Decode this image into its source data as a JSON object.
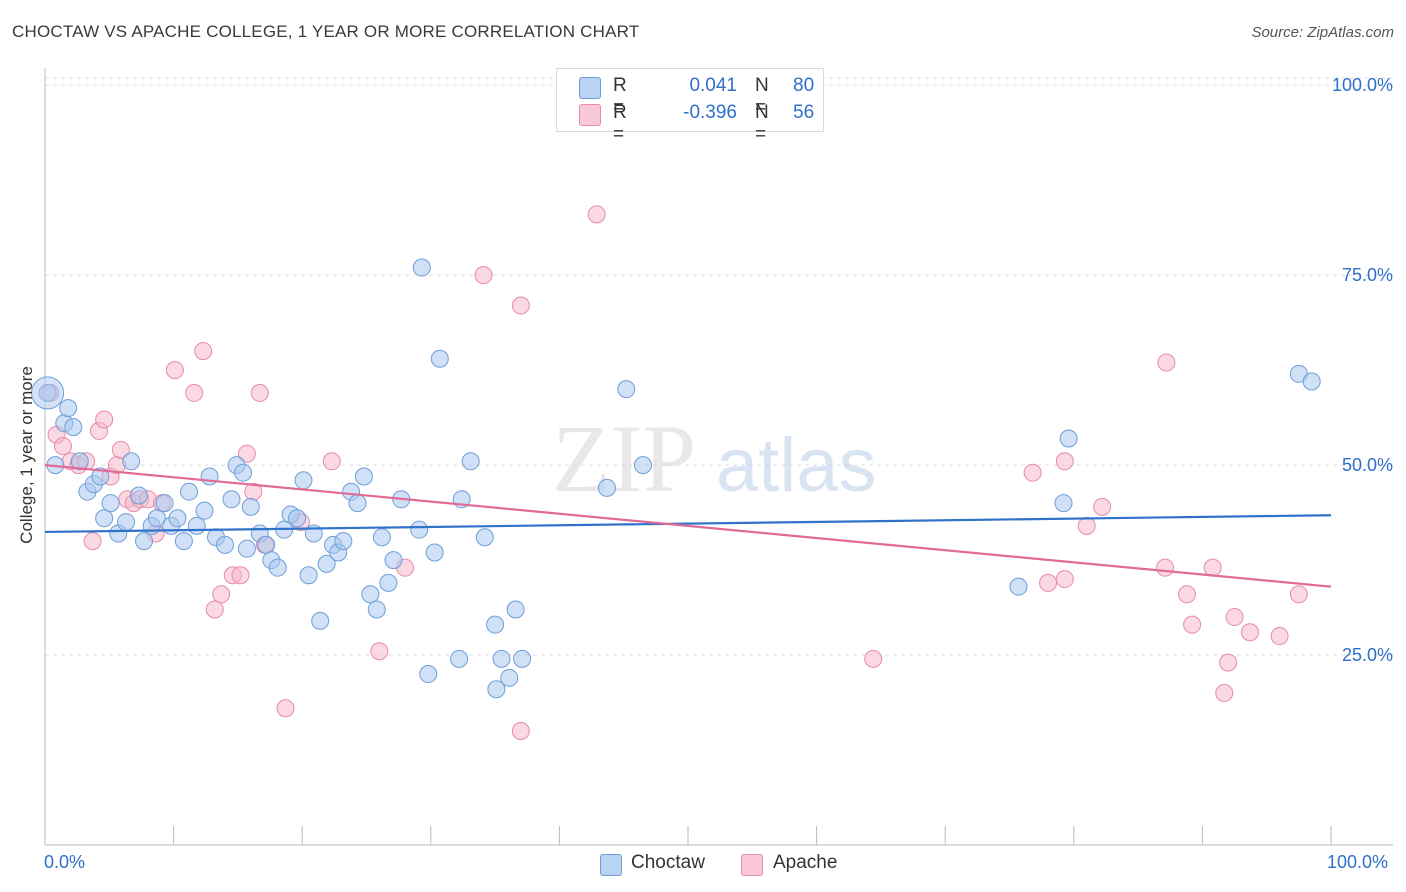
{
  "title": "CHOCTAW VS APACHE COLLEGE, 1 YEAR OR MORE CORRELATION CHART",
  "source": "Source: ZipAtlas.com",
  "watermark": {
    "zip": "ZIP",
    "atlas": "atlas"
  },
  "colors": {
    "choctaw_fill": "#a9c8f0",
    "choctaw_stroke": "#6d9ed8",
    "choctaw_line": "#2f72c8",
    "apache_fill": "#f6b9cc",
    "apache_stroke": "#e88aa8",
    "apache_line": "#e06b97",
    "accent_text": "#2f6fc9"
  },
  "legend": {
    "rows": [
      {
        "r_label": "R =",
        "r_value": "0.041",
        "n_label": "N =",
        "n_value": "80"
      },
      {
        "r_label": "R =",
        "r_value": "-0.396",
        "n_label": "N =",
        "n_value": "56"
      }
    ]
  },
  "bottom_legend": {
    "items": [
      "Choctaw",
      "Apache"
    ]
  },
  "chart_data": {
    "type": "scatter",
    "title": "CHOCTAW VS APACHE COLLEGE, 1 YEAR OR MORE CORRELATION CHART",
    "xlabel": "",
    "ylabel": "College, 1 year or more",
    "xlim": [
      0,
      100
    ],
    "ylim": [
      0,
      102
    ],
    "x_tick_labels": [
      "0.0%",
      "100.0%"
    ],
    "y_ticks": [
      25,
      50,
      75,
      100
    ],
    "y_tick_labels": [
      "25.0%",
      "50.0%",
      "75.0%",
      "100.0%"
    ],
    "grid": "horizontal dashed",
    "legend_position": "top-center",
    "series": [
      {
        "name": "Choctaw",
        "trend": {
          "x": [
            0,
            100
          ],
          "y": [
            41.2,
            43.4
          ]
        },
        "points": [
          [
            0.2,
            59.5
          ],
          [
            1.5,
            55.5
          ],
          [
            1.8,
            57.5
          ],
          [
            2.2,
            55.0
          ],
          [
            2.7,
            50.5
          ],
          [
            3.3,
            46.5
          ],
          [
            3.8,
            47.5
          ],
          [
            4.3,
            48.5
          ],
          [
            4.6,
            43.0
          ],
          [
            5.1,
            45.0
          ],
          [
            5.7,
            41.0
          ],
          [
            6.3,
            42.5
          ],
          [
            6.7,
            50.5
          ],
          [
            7.3,
            46.0
          ],
          [
            7.7,
            40.0
          ],
          [
            8.3,
            42.0
          ],
          [
            8.7,
            43.0
          ],
          [
            9.3,
            45.0
          ],
          [
            9.8,
            42.0
          ],
          [
            10.3,
            43.0
          ],
          [
            10.8,
            40.0
          ],
          [
            11.2,
            46.5
          ],
          [
            11.8,
            42.0
          ],
          [
            12.4,
            44.0
          ],
          [
            12.8,
            48.5
          ],
          [
            13.3,
            40.5
          ],
          [
            14.0,
            39.5
          ],
          [
            14.5,
            45.5
          ],
          [
            14.9,
            50.0
          ],
          [
            15.4,
            49.0
          ],
          [
            15.7,
            39.0
          ],
          [
            16.0,
            44.5
          ],
          [
            16.7,
            41.0
          ],
          [
            17.2,
            39.5
          ],
          [
            17.6,
            37.5
          ],
          [
            18.1,
            36.5
          ],
          [
            18.6,
            41.5
          ],
          [
            19.1,
            43.5
          ],
          [
            19.6,
            43.0
          ],
          [
            20.1,
            48.0
          ],
          [
            20.5,
            35.5
          ],
          [
            20.9,
            41.0
          ],
          [
            21.4,
            29.5
          ],
          [
            21.9,
            37.0
          ],
          [
            22.4,
            39.5
          ],
          [
            22.8,
            38.5
          ],
          [
            23.2,
            40.0
          ],
          [
            23.8,
            46.5
          ],
          [
            24.3,
            45.0
          ],
          [
            24.8,
            48.5
          ],
          [
            25.3,
            33.0
          ],
          [
            25.8,
            31.0
          ],
          [
            26.2,
            40.5
          ],
          [
            26.7,
            34.5
          ],
          [
            27.1,
            37.5
          ],
          [
            27.7,
            45.5
          ],
          [
            29.1,
            41.5
          ],
          [
            29.3,
            76.0
          ],
          [
            29.8,
            22.5
          ],
          [
            30.3,
            38.5
          ],
          [
            30.7,
            64.0
          ],
          [
            32.2,
            24.5
          ],
          [
            32.4,
            45.5
          ],
          [
            33.1,
            50.5
          ],
          [
            34.2,
            40.5
          ],
          [
            35.0,
            29.0
          ],
          [
            35.1,
            20.5
          ],
          [
            35.5,
            24.5
          ],
          [
            36.1,
            22.0
          ],
          [
            36.6,
            31.0
          ],
          [
            37.1,
            24.5
          ],
          [
            43.7,
            47.0
          ],
          [
            45.2,
            60.0
          ],
          [
            46.5,
            50.0
          ],
          [
            75.7,
            34.0
          ],
          [
            79.2,
            45.0
          ],
          [
            79.6,
            53.5
          ],
          [
            97.5,
            62.0
          ],
          [
            98.5,
            61.0
          ],
          [
            0.8,
            50.0
          ]
        ]
      },
      {
        "name": "Apache",
        "trend": {
          "x": [
            0,
            100
          ],
          "y": [
            50.0,
            34.0
          ]
        },
        "points": [
          [
            0.4,
            59.5
          ],
          [
            0.9,
            54.0
          ],
          [
            1.4,
            52.5
          ],
          [
            2.0,
            50.5
          ],
          [
            2.6,
            50.0
          ],
          [
            3.2,
            50.5
          ],
          [
            3.7,
            40.0
          ],
          [
            4.2,
            54.5
          ],
          [
            4.6,
            56.0
          ],
          [
            5.1,
            48.5
          ],
          [
            5.6,
            50.0
          ],
          [
            5.9,
            52.0
          ],
          [
            6.4,
            45.5
          ],
          [
            6.9,
            45.0
          ],
          [
            7.4,
            45.5
          ],
          [
            8.0,
            45.5
          ],
          [
            8.6,
            41.0
          ],
          [
            9.1,
            45.0
          ],
          [
            10.1,
            62.5
          ],
          [
            11.6,
            59.5
          ],
          [
            12.3,
            65.0
          ],
          [
            13.2,
            31.0
          ],
          [
            13.7,
            33.0
          ],
          [
            14.6,
            35.5
          ],
          [
            15.2,
            35.5
          ],
          [
            15.7,
            51.5
          ],
          [
            16.2,
            46.5
          ],
          [
            16.7,
            59.5
          ],
          [
            17.1,
            39.5
          ],
          [
            18.7,
            18.0
          ],
          [
            19.9,
            42.5
          ],
          [
            22.3,
            50.5
          ],
          [
            26.0,
            25.5
          ],
          [
            28.0,
            36.5
          ],
          [
            34.1,
            75.0
          ],
          [
            37.0,
            71.0
          ],
          [
            37.0,
            15.0
          ],
          [
            42.9,
            83.0
          ],
          [
            64.4,
            24.5
          ],
          [
            76.8,
            49.0
          ],
          [
            78.0,
            34.5
          ],
          [
            79.3,
            35.0
          ],
          [
            79.3,
            50.5
          ],
          [
            81.0,
            42.0
          ],
          [
            82.2,
            44.5
          ],
          [
            87.1,
            36.5
          ],
          [
            87.2,
            63.5
          ],
          [
            88.8,
            33.0
          ],
          [
            89.2,
            29.0
          ],
          [
            90.8,
            36.5
          ],
          [
            91.7,
            20.0
          ],
          [
            92.0,
            24.0
          ],
          [
            92.5,
            30.0
          ],
          [
            93.7,
            28.0
          ],
          [
            96.0,
            27.5
          ],
          [
            97.5,
            33.0
          ]
        ]
      }
    ]
  }
}
